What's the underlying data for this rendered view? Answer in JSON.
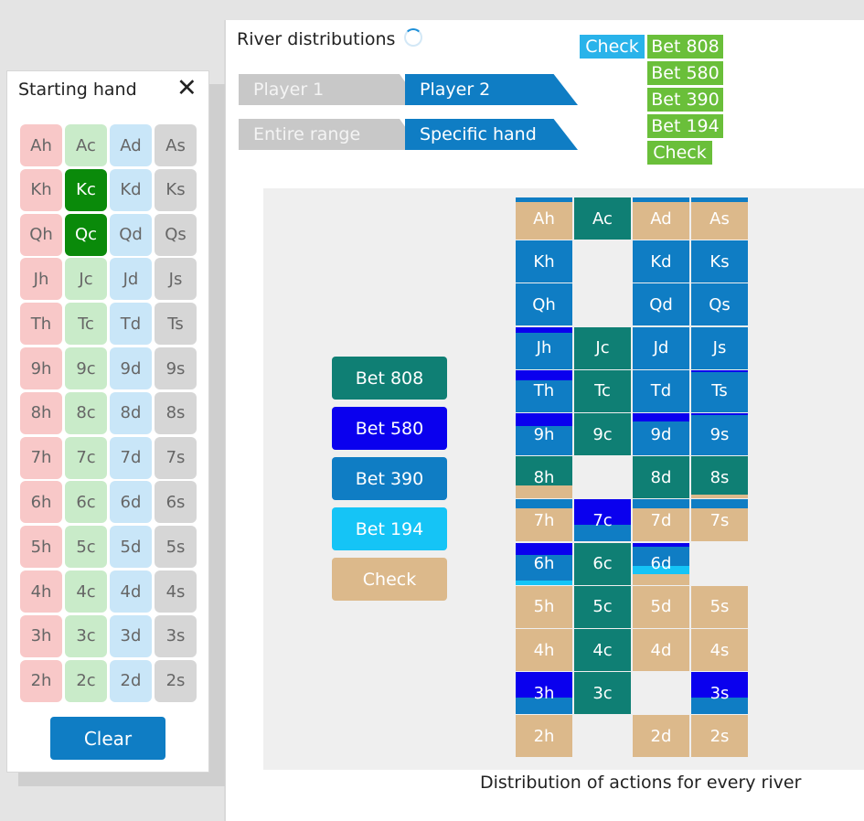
{
  "colors": {
    "bet808": "#0f7f74",
    "bet580": "#0a00ee",
    "bet390": "#0f7dc4",
    "bet194": "#15c4f6",
    "check": "#dcb98b"
  },
  "starting_hand": {
    "title": "Starting hand",
    "close_icon": "close-icon",
    "clear_label": "Clear",
    "rows": [
      [
        "Ah",
        "Ac",
        "Ad",
        "As"
      ],
      [
        "Kh",
        "Kc",
        "Kd",
        "Ks"
      ],
      [
        "Qh",
        "Qc",
        "Qd",
        "Qs"
      ],
      [
        "Jh",
        "Jc",
        "Jd",
        "Js"
      ],
      [
        "Th",
        "Tc",
        "Td",
        "Ts"
      ],
      [
        "9h",
        "9c",
        "9d",
        "9s"
      ],
      [
        "8h",
        "8c",
        "8d",
        "8s"
      ],
      [
        "7h",
        "7c",
        "7d",
        "7s"
      ],
      [
        "6h",
        "6c",
        "6d",
        "6s"
      ],
      [
        "5h",
        "5c",
        "5d",
        "5s"
      ],
      [
        "4h",
        "4c",
        "4d",
        "4s"
      ],
      [
        "3h",
        "3c",
        "3d",
        "3s"
      ],
      [
        "2h",
        "2c",
        "2d",
        "2s"
      ]
    ],
    "selected": [
      "Kc",
      "Qc"
    ]
  },
  "river": {
    "title": "River distributions",
    "tabs_player": [
      "Player 1",
      "Player 2"
    ],
    "active_player": "Player 2",
    "tabs_range": [
      "Entire range",
      "Specific hand"
    ],
    "active_range": "Specific hand"
  },
  "legend": {
    "root": "Check",
    "children": [
      "Bet 808",
      "Bet 580",
      "Bet 390",
      "Bet 194",
      "Check"
    ]
  },
  "actions": [
    {
      "label": "Bet 808",
      "key": "bet808",
      "text_color": "#ffffff"
    },
    {
      "label": "Bet 580",
      "key": "bet580",
      "text_color": "#ffffff"
    },
    {
      "label": "Bet 390",
      "key": "bet390",
      "text_color": "#ffffff"
    },
    {
      "label": "Bet 194",
      "key": "bet194",
      "text_color": "#ffffff"
    },
    {
      "label": "Check",
      "key": "check",
      "text_color": "#ffffff"
    }
  ],
  "chart_data": {
    "type": "heatmap",
    "title": "",
    "footer": "Distribution of actions for every river",
    "rows": [
      "A",
      "K",
      "Q",
      "J",
      "T",
      "9",
      "8",
      "7",
      "6",
      "5",
      "4",
      "3",
      "2"
    ],
    "cols": [
      "h",
      "c",
      "d",
      "s"
    ],
    "order": [
      "bet808",
      "bet580",
      "bet390",
      "bet194",
      "check"
    ],
    "cells": [
      [
        {
          "bet390": 0.1,
          "check": 0.9
        },
        {
          "bet808": 1.0
        },
        {
          "bet390": 0.1,
          "check": 0.9
        },
        {
          "bet390": 0.1,
          "check": 0.9
        }
      ],
      [
        {
          "bet390": 1.0
        },
        null,
        {
          "bet390": 1.0
        },
        {
          "bet390": 1.0
        }
      ],
      [
        {
          "bet390": 1.0
        },
        null,
        {
          "bet390": 1.0
        },
        {
          "bet390": 1.0
        }
      ],
      [
        {
          "bet580": 0.15,
          "bet390": 0.85
        },
        {
          "bet808": 1.0
        },
        {
          "bet390": 1.0
        },
        {
          "bet390": 1.0
        }
      ],
      [
        {
          "bet580": 0.25,
          "bet390": 0.75
        },
        {
          "bet808": 1.0
        },
        {
          "bet390": 1.0
        },
        {
          "bet580": 0.05,
          "bet390": 0.95
        }
      ],
      [
        {
          "bet580": 0.3,
          "bet390": 0.7
        },
        {
          "bet808": 1.0
        },
        {
          "bet580": 0.2,
          "bet390": 0.8
        },
        {
          "bet580": 0.05,
          "bet390": 0.95
        }
      ],
      [
        {
          "bet808": 0.7,
          "check": 0.3
        },
        null,
        {
          "bet808": 1.0
        },
        {
          "bet808": 0.9,
          "check": 0.1
        }
      ],
      [
        {
          "bet390": 0.2,
          "check": 0.8
        },
        {
          "bet580": 0.6,
          "bet390": 0.4
        },
        {
          "bet390": 0.2,
          "check": 0.8
        },
        {
          "bet390": 0.2,
          "check": 0.8
        }
      ],
      [
        {
          "bet580": 0.3,
          "bet390": 0.6,
          "bet194": 0.1
        },
        {
          "bet808": 1.0
        },
        {
          "bet580": 0.1,
          "bet390": 0.45,
          "bet194": 0.2,
          "check": 0.25
        },
        null
      ],
      [
        {
          "check": 1.0
        },
        {
          "bet808": 1.0
        },
        {
          "check": 1.0
        },
        {
          "check": 1.0
        }
      ],
      [
        {
          "check": 1.0
        },
        {
          "bet808": 1.0
        },
        {
          "check": 1.0
        },
        {
          "check": 1.0
        }
      ],
      [
        {
          "bet580": 0.6,
          "bet390": 0.4
        },
        {
          "bet808": 1.0
        },
        null,
        {
          "bet580": 0.6,
          "bet390": 0.4
        }
      ],
      [
        {
          "check": 1.0
        },
        null,
        {
          "check": 1.0
        },
        {
          "check": 1.0
        }
      ]
    ]
  }
}
